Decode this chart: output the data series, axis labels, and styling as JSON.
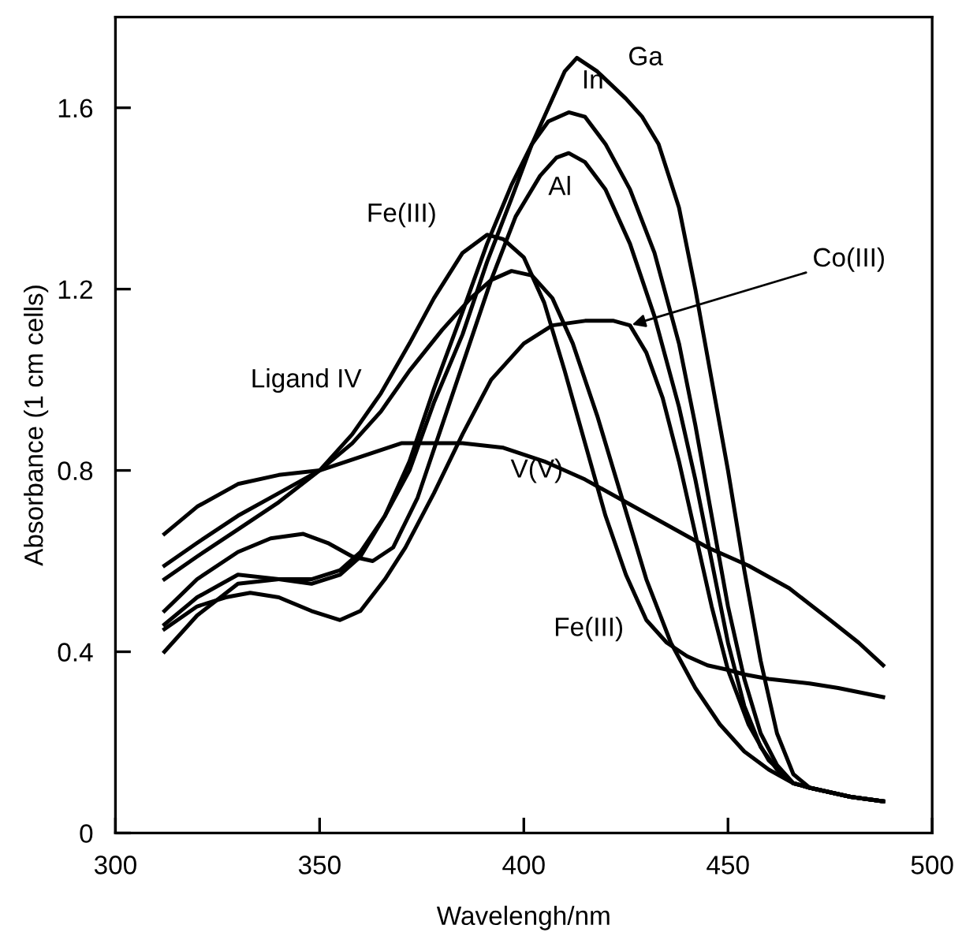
{
  "chart_data": {
    "type": "line",
    "xlabel": "Wavelengh/nm",
    "ylabel": "Absorbance (1 cm cells)",
    "xlim": [
      300,
      500
    ],
    "xticks": [
      300,
      350,
      400,
      450,
      500
    ],
    "ylim": [
      0,
      1.8
    ],
    "yticks": [
      0,
      0.4,
      0.8,
      1.2,
      1.6
    ],
    "grid": false,
    "legend": false,
    "marker": "none",
    "line_style": "solid",
    "series": [
      {
        "color": "#000000",
        "x": [
          312,
          320,
          330,
          340,
          348,
          355,
          360,
          366,
          372,
          378,
          385,
          391,
          397,
          402,
          407,
          410,
          413,
          418,
          425,
          429,
          433,
          438,
          442,
          446,
          450,
          454,
          458,
          462,
          466,
          470,
          475,
          480,
          488
        ],
        "values": [
          0.4,
          0.48,
          0.55,
          0.56,
          0.56,
          0.58,
          0.62,
          0.7,
          0.8,
          0.95,
          1.1,
          1.26,
          1.4,
          1.52,
          1.62,
          1.68,
          1.71,
          1.68,
          1.62,
          1.58,
          1.52,
          1.38,
          1.2,
          1.0,
          0.8,
          0.58,
          0.38,
          0.22,
          0.13,
          0.1,
          0.09,
          0.08,
          0.07
        ]
      },
      {
        "color": "#000000",
        "x": [
          312,
          320,
          330,
          340,
          348,
          355,
          360,
          366,
          372,
          378,
          385,
          391,
          397,
          402,
          406,
          411,
          415,
          420,
          426,
          432,
          438,
          442,
          446,
          450,
          454,
          458,
          462,
          466,
          470,
          480,
          488
        ],
        "values": [
          0.46,
          0.52,
          0.57,
          0.56,
          0.55,
          0.57,
          0.61,
          0.7,
          0.82,
          0.98,
          1.15,
          1.3,
          1.43,
          1.52,
          1.57,
          1.59,
          1.58,
          1.52,
          1.42,
          1.28,
          1.08,
          0.9,
          0.7,
          0.5,
          0.34,
          0.22,
          0.15,
          0.11,
          0.1,
          0.08,
          0.07
        ]
      },
      {
        "color": "#000000",
        "x": [
          312,
          320,
          330,
          338,
          346,
          352,
          358,
          363,
          368,
          374,
          380,
          386,
          392,
          398,
          404,
          408,
          411,
          415,
          420,
          426,
          432,
          438,
          442,
          446,
          450,
          454,
          458,
          462,
          466,
          470,
          480,
          488
        ],
        "values": [
          0.49,
          0.56,
          0.62,
          0.65,
          0.66,
          0.64,
          0.61,
          0.6,
          0.63,
          0.74,
          0.9,
          1.06,
          1.22,
          1.36,
          1.45,
          1.49,
          1.5,
          1.48,
          1.42,
          1.3,
          1.14,
          0.94,
          0.78,
          0.6,
          0.42,
          0.28,
          0.19,
          0.14,
          0.11,
          0.1,
          0.08,
          0.07
        ]
      },
      {
        "color": "#000000",
        "x": [
          312,
          320,
          330,
          340,
          350,
          358,
          365,
          372,
          378,
          385,
          391,
          395,
          400,
          405,
          410,
          415,
          420,
          425,
          430,
          435,
          440,
          445,
          450,
          454,
          460,
          470,
          477,
          488
        ],
        "values": [
          0.56,
          0.61,
          0.67,
          0.73,
          0.8,
          0.88,
          0.97,
          1.08,
          1.18,
          1.28,
          1.32,
          1.31,
          1.27,
          1.17,
          1.02,
          0.86,
          0.7,
          0.57,
          0.47,
          0.42,
          0.39,
          0.37,
          0.36,
          0.35,
          0.34,
          0.33,
          0.32,
          0.3
        ]
      },
      {
        "color": "#000000",
        "x": [
          312,
          320,
          330,
          340,
          350,
          358,
          365,
          372,
          380,
          387,
          392,
          397,
          402,
          407,
          412,
          418,
          424,
          430,
          436,
          442,
          448,
          454,
          460,
          466,
          470,
          480,
          488
        ],
        "values": [
          0.59,
          0.64,
          0.7,
          0.75,
          0.8,
          0.86,
          0.93,
          1.02,
          1.11,
          1.18,
          1.22,
          1.24,
          1.23,
          1.18,
          1.08,
          0.92,
          0.74,
          0.56,
          0.42,
          0.32,
          0.24,
          0.18,
          0.14,
          0.11,
          0.1,
          0.08,
          0.07
        ]
      },
      {
        "color": "#000000",
        "x": [
          312,
          320,
          327,
          333,
          340,
          348,
          355,
          360,
          366,
          371,
          378,
          385,
          392,
          400,
          407,
          415,
          422,
          426,
          430,
          434,
          438,
          442,
          446,
          450,
          455,
          460,
          466,
          470,
          480,
          488
        ],
        "values": [
          0.45,
          0.5,
          0.52,
          0.53,
          0.52,
          0.49,
          0.47,
          0.49,
          0.56,
          0.63,
          0.75,
          0.88,
          1.0,
          1.08,
          1.12,
          1.13,
          1.13,
          1.12,
          1.06,
          0.96,
          0.82,
          0.66,
          0.5,
          0.36,
          0.24,
          0.16,
          0.11,
          0.1,
          0.08,
          0.07
        ]
      },
      {
        "color": "#000000",
        "x": [
          312,
          320,
          330,
          340,
          350,
          360,
          370,
          378,
          385,
          395,
          405,
          415,
          425,
          435,
          445,
          455,
          465,
          475,
          482,
          488
        ],
        "values": [
          0.66,
          0.72,
          0.77,
          0.79,
          0.8,
          0.83,
          0.86,
          0.86,
          0.86,
          0.85,
          0.82,
          0.78,
          0.73,
          0.68,
          0.63,
          0.59,
          0.54,
          0.47,
          0.42,
          0.37
        ]
      }
    ],
    "annotations": [
      {
        "text": "Ga",
        "x": 418,
        "y": 1.68
      },
      {
        "text": "In",
        "x": 411,
        "y": 1.59
      },
      {
        "text": "Al",
        "x": 411,
        "y": 1.5
      },
      {
        "text": "Fe(III)",
        "x": 391,
        "y": 1.32
      },
      {
        "text": "Ligand IV",
        "x": 366,
        "y": 0.95
      },
      {
        "text": "Co(III)",
        "x": 426,
        "y": 1.12
      },
      {
        "text": "V(V)",
        "x": 415,
        "y": 0.78
      },
      {
        "text": "Fe(III)",
        "x": 432,
        "y": 0.45
      }
    ]
  }
}
